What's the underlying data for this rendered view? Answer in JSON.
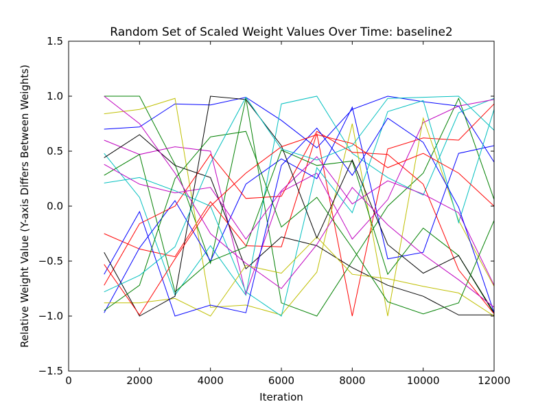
{
  "chart_data": {
    "type": "line",
    "title": "Random Set of Scaled Weight Values Over Time: baseline2",
    "xlabel": "Iteration",
    "ylabel": "Relative Weight Value (Y-axis Differs Between Weights)",
    "xlim": [
      0,
      12000
    ],
    "ylim": [
      -1.5,
      1.5
    ],
    "xticks": [
      0,
      2000,
      4000,
      6000,
      8000,
      10000,
      12000
    ],
    "yticks": [
      -1.5,
      -1.0,
      -0.5,
      0.0,
      0.5,
      1.0,
      1.5
    ],
    "xtick_labels": [
      "0",
      "2000",
      "4000",
      "6000",
      "8000",
      "10000",
      "12000"
    ],
    "ytick_labels": [
      "−1.5",
      "−1.0",
      "−0.5",
      "0.0",
      "0.5",
      "1.0",
      "1.5"
    ],
    "grid": false,
    "legend": false,
    "colors": [
      "#0000ff",
      "#008000",
      "#ff0000",
      "#00bfbf",
      "#bf00bf",
      "#bfbf00",
      "#000000"
    ],
    "x": [
      1000,
      2000,
      3000,
      4000,
      5000,
      6000,
      7000,
      8000,
      9000,
      10000,
      11000,
      12000
    ],
    "series": [
      {
        "values": [
          0.7,
          0.72,
          0.93,
          0.92,
          0.99,
          0.78,
          0.53,
          0.88,
          1.0,
          0.95,
          0.91,
          0.4
        ]
      },
      {
        "values": [
          1.0,
          1.0,
          0.38,
          -0.52,
          0.98,
          -0.88,
          -1.0,
          -0.5,
          0.0,
          0.3,
          0.98,
          0.06
        ]
      },
      {
        "values": [
          -0.25,
          -0.39,
          -0.46,
          0.04,
          -0.36,
          -0.37,
          0.66,
          -1.0,
          0.52,
          0.62,
          0.6,
          0.93
        ]
      },
      {
        "values": [
          0.48,
          0.08,
          -0.81,
          -0.36,
          -0.81,
          0.93,
          1.0,
          0.48,
          0.26,
          0.1,
          0.85,
          0.98
        ]
      },
      {
        "values": [
          0.6,
          0.47,
          0.54,
          0.5,
          -0.8,
          0.13,
          0.3,
          -0.3,
          0.06,
          0.76,
          0.91,
          0.97
        ]
      },
      {
        "values": [
          0.84,
          0.88,
          0.98,
          -0.92,
          -0.9,
          -0.99,
          -0.6,
          0.75,
          -1.0,
          0.8,
          -0.13,
          -0.73
        ]
      },
      {
        "values": [
          0.44,
          0.65,
          0.37,
          0.26,
          -0.57,
          -0.28,
          -0.36,
          -0.56,
          -0.72,
          -0.82,
          -0.99,
          -0.99
        ]
      },
      {
        "values": [
          -0.97,
          -0.38,
          0.05,
          -0.5,
          0.2,
          0.43,
          0.25,
          0.9,
          -0.48,
          -0.42,
          0.48,
          0.55
        ]
      },
      {
        "values": [
          0.28,
          0.47,
          -0.78,
          -0.5,
          -0.37,
          0.51,
          0.37,
          0.41,
          -0.62,
          -0.2,
          -0.45,
          -0.98
        ]
      },
      {
        "values": [
          -0.72,
          -0.16,
          0.0,
          0.47,
          0.07,
          0.09,
          0.68,
          0.49,
          0.47,
          0.2,
          -0.58,
          -0.98
        ]
      },
      {
        "values": [
          0.21,
          0.26,
          0.14,
          0.0,
          -0.78,
          -1.0,
          0.35,
          -0.06,
          0.86,
          0.96,
          -0.15,
          0.88
        ]
      },
      {
        "values": [
          0.38,
          0.2,
          0.12,
          0.17,
          -0.3,
          0.14,
          0.45,
          0.02,
          0.23,
          0.11,
          -0.06,
          -0.72
        ]
      },
      {
        "values": [
          -0.88,
          -0.88,
          -0.84,
          -1.0,
          -0.54,
          -0.61,
          -0.28,
          -0.62,
          -0.66,
          -0.73,
          -0.79,
          -1.0
        ]
      },
      {
        "values": [
          -0.42,
          -1.0,
          -0.82,
          1.0,
          0.97,
          0.55,
          -0.29,
          0.42,
          -0.35,
          -0.61,
          -0.45,
          -0.97
        ]
      },
      {
        "values": [
          -0.62,
          -0.05,
          -1.0,
          -0.9,
          -0.97,
          0.37,
          0.71,
          0.28,
          0.8,
          0.58,
          -0.01,
          -0.97
        ]
      },
      {
        "values": [
          -0.95,
          -0.72,
          0.25,
          0.63,
          0.68,
          -0.19,
          0.08,
          -0.38,
          -0.87,
          -0.98,
          -0.88,
          -0.13
        ]
      },
      {
        "values": [
          -0.53,
          -0.99,
          -0.48,
          0.0,
          0.3,
          0.54,
          0.65,
          0.57,
          0.35,
          0.48,
          0.3,
          0.0
        ]
      },
      {
        "values": [
          -0.78,
          -0.63,
          -0.37,
          0.39,
          0.99,
          0.52,
          0.42,
          0.55,
          0.98,
          0.99,
          1.0,
          0.69
        ]
      },
      {
        "values": [
          1.0,
          0.75,
          0.3,
          -0.25,
          -0.52,
          -0.75,
          -0.35,
          0.17,
          -0.17,
          -0.44,
          -0.67,
          -0.92
        ]
      }
    ]
  }
}
